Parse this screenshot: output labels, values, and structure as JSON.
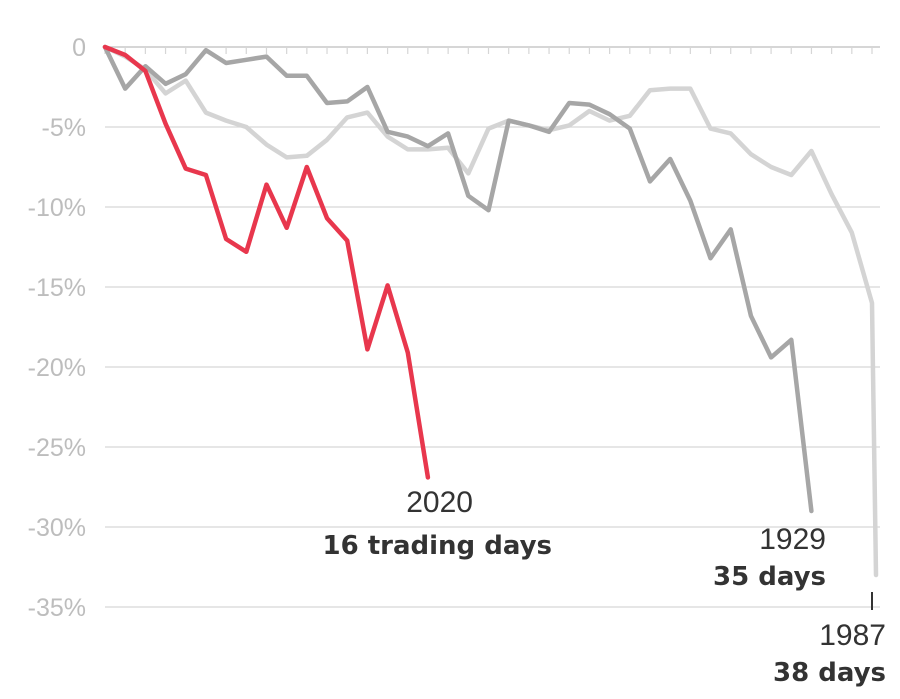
{
  "chart_data": {
    "type": "line",
    "title": "",
    "xlabel": "",
    "ylabel": "",
    "y_ticks": [
      "0",
      "-5%",
      "-10%",
      "-15%",
      "-20%",
      "-25%",
      "-30%",
      "-35%"
    ],
    "ylim": [
      -35,
      0
    ],
    "x_unit": "trading days",
    "xlim": [
      0,
      38
    ],
    "grid": true,
    "series": [
      {
        "name": "1987",
        "color": "#d4d4d4",
        "x": [
          0,
          1,
          2,
          3,
          4,
          5,
          6,
          7,
          8,
          9,
          10,
          11,
          12,
          13,
          14,
          15,
          16,
          17,
          18,
          19,
          20,
          21,
          22,
          23,
          24,
          25,
          26,
          27,
          28,
          29,
          30,
          31,
          32,
          33,
          34,
          35,
          36,
          37,
          38
        ],
        "values": [
          0,
          -0.6,
          -1.4,
          -2.9,
          -2.1,
          -4.1,
          -4.6,
          -5.0,
          -6.1,
          -6.9,
          -6.8,
          -5.8,
          -4.4,
          -4.1,
          -5.6,
          -6.4,
          -6.4,
          -6.3,
          -7.9,
          -5.1,
          -4.6,
          -4.9,
          -5.2,
          -4.9,
          -4.0,
          -4.6,
          -4.3,
          -2.7,
          -2.6,
          -2.6,
          -5.1,
          -5.4,
          -6.7,
          -7.5,
          -8.0,
          -6.5,
          -9.2,
          -11.6,
          -16.0
        ],
        "final_point": {
          "x": 38.2,
          "value": -33.0
        }
      },
      {
        "name": "1929",
        "color": "#a6a6a6",
        "x": [
          0,
          1,
          2,
          3,
          4,
          5,
          6,
          7,
          8,
          9,
          10,
          11,
          12,
          13,
          14,
          15,
          16,
          17,
          18,
          19,
          20,
          21,
          22,
          23,
          24,
          25,
          26,
          27,
          28,
          29,
          30,
          31,
          32,
          33,
          34,
          35
        ],
        "values": [
          0,
          -2.6,
          -1.2,
          -2.3,
          -1.7,
          -0.2,
          -1.0,
          -0.8,
          -0.6,
          -1.8,
          -1.8,
          -3.5,
          -3.4,
          -2.5,
          -5.3,
          -5.6,
          -6.2,
          -5.4,
          -9.3,
          -10.2,
          -4.6,
          -4.9,
          -5.3,
          -3.5,
          -3.6,
          -4.2,
          -5.1,
          -8.4,
          -7.0,
          -9.6,
          -13.2,
          -11.4,
          -16.8,
          -19.4,
          -18.3,
          -29.0
        ]
      },
      {
        "name": "2020",
        "color": "#e8374d",
        "x": [
          0,
          1,
          2,
          3,
          4,
          5,
          6,
          7,
          8,
          9,
          10,
          11,
          12,
          13,
          14,
          15,
          16
        ],
        "values": [
          0,
          -0.5,
          -1.5,
          -4.8,
          -7.6,
          -8.0,
          -12.0,
          -12.8,
          -8.6,
          -11.3,
          -7.5,
          -10.7,
          -12.1,
          -18.9,
          -14.9,
          -19.1,
          -26.9
        ]
      }
    ],
    "annotations": [
      {
        "series": "2020",
        "year_label": "2020",
        "days_label": "16 trading days"
      },
      {
        "series": "1929",
        "year_label": "1929",
        "days_label": "35 days"
      },
      {
        "series": "1987",
        "year_label": "1987",
        "days_label": "38 days"
      }
    ]
  }
}
